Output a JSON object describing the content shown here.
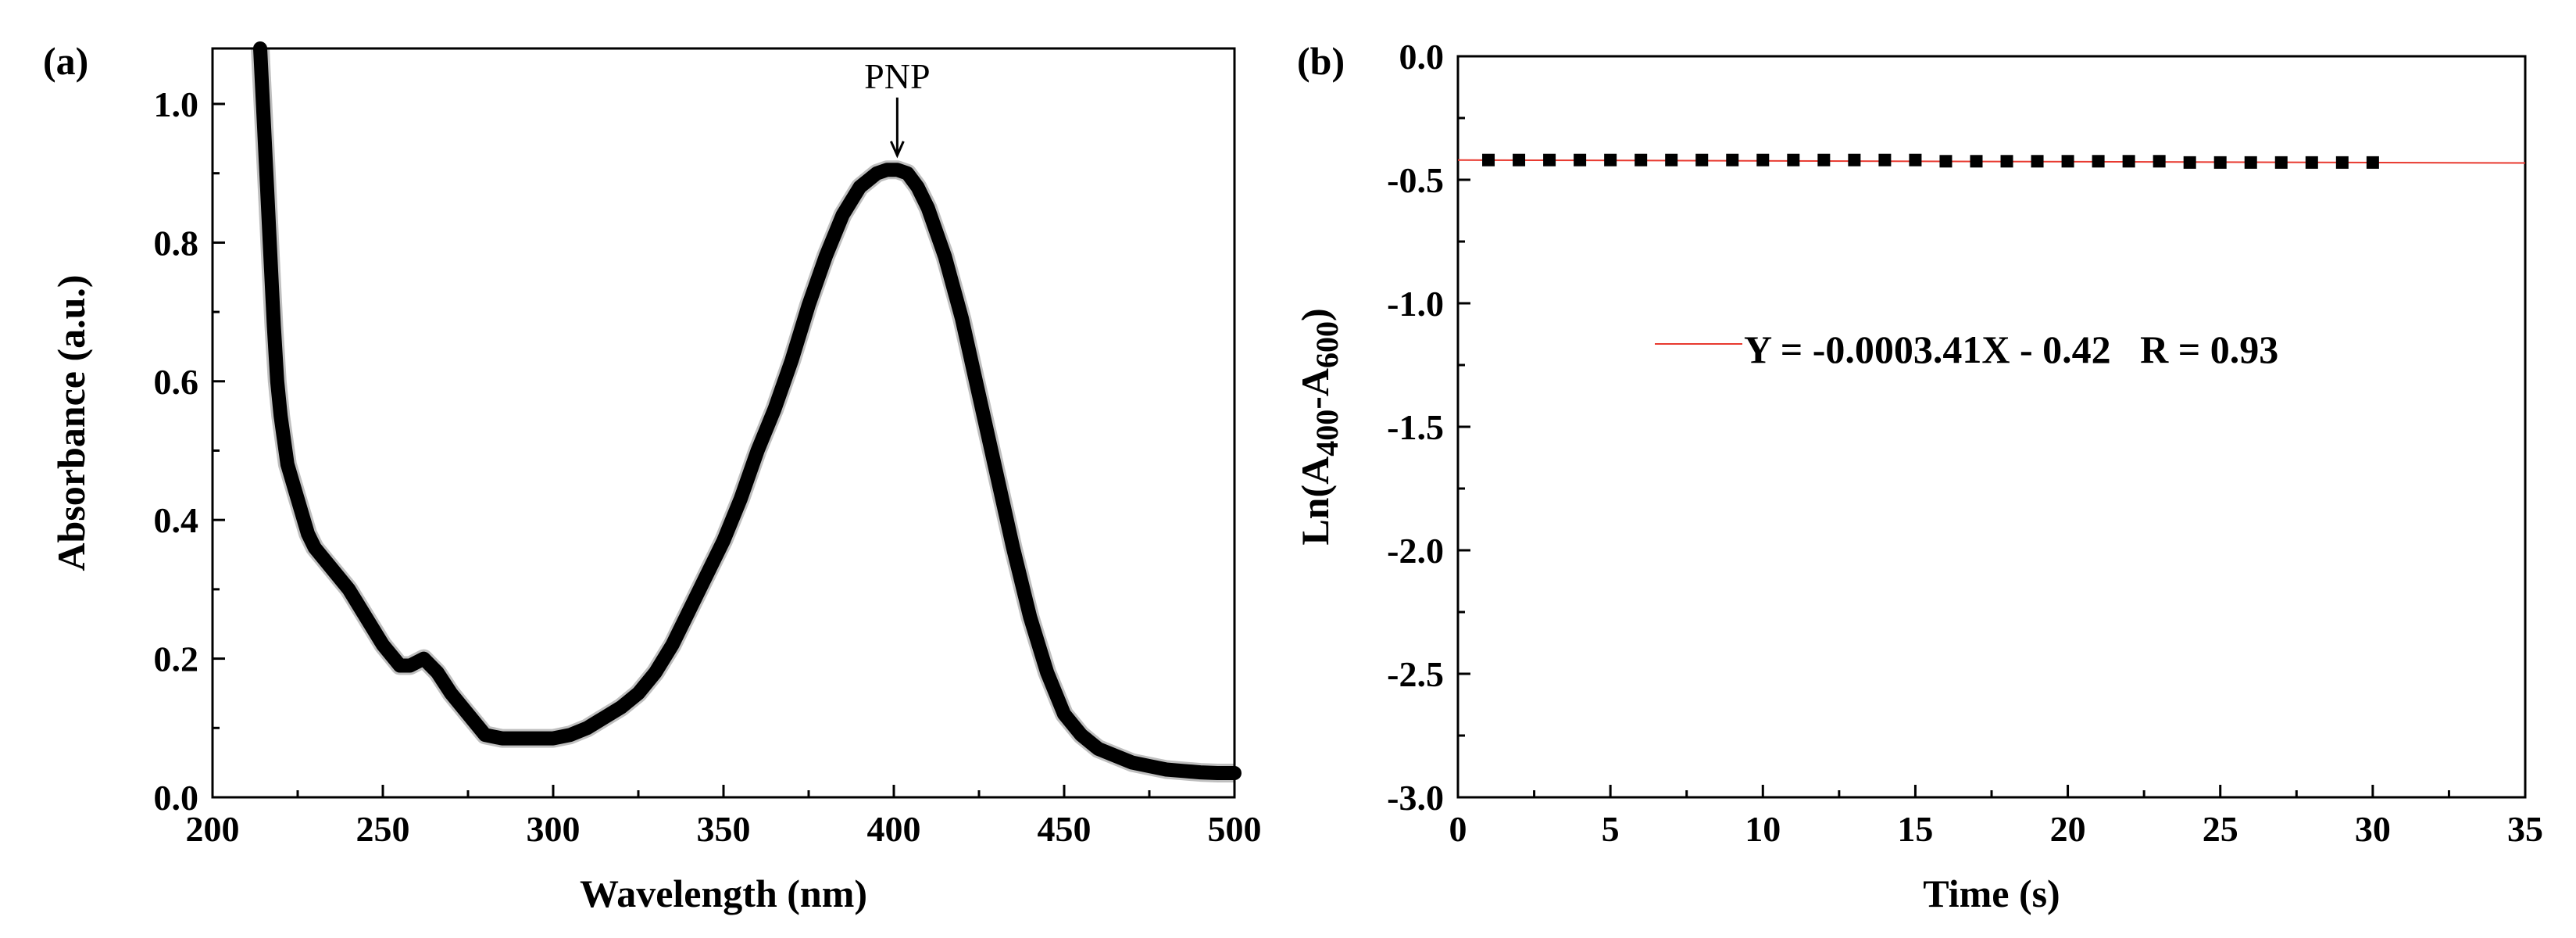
{
  "chart_data": [
    {
      "panel_label": "(a)",
      "type": "line",
      "xlabel": "Wavelength (nm)",
      "ylabel": "Absorbance (a.u.)",
      "xlim": [
        200,
        500
      ],
      "ylim": [
        0,
        1.08
      ],
      "x_ticks": [
        200,
        250,
        300,
        350,
        400,
        450,
        500
      ],
      "x_tick_labels": [
        "200",
        "250",
        "300",
        "350",
        "400",
        "450",
        "500"
      ],
      "y_ticks": [
        0.0,
        0.2,
        0.4,
        0.6,
        0.8,
        1.0
      ],
      "y_tick_labels": [
        "0.0",
        "0.2",
        "0.4",
        "0.6",
        "0.8",
        "1.0"
      ],
      "grid": false,
      "annotation": {
        "text": "PNP",
        "x": 401,
        "y": 0.91
      },
      "series": [
        {
          "color": "#000000",
          "x": [
            214,
            215,
            216,
            217,
            218,
            219,
            220,
            222,
            225,
            228,
            230,
            235,
            240,
            245,
            250,
            255,
            258,
            262,
            266,
            270,
            275,
            280,
            285,
            290,
            295,
            300,
            305,
            310,
            315,
            320,
            325,
            330,
            335,
            340,
            345,
            350,
            355,
            360,
            365,
            370,
            375,
            380,
            385,
            390,
            395,
            398,
            401,
            404,
            407,
            410,
            415,
            420,
            425,
            430,
            435,
            440,
            445,
            450,
            455,
            460,
            465,
            470,
            475,
            480,
            485,
            490,
            495,
            500
          ],
          "y": [
            1.08,
            0.98,
            0.88,
            0.78,
            0.68,
            0.6,
            0.55,
            0.48,
            0.43,
            0.38,
            0.36,
            0.33,
            0.3,
            0.26,
            0.22,
            0.19,
            0.19,
            0.2,
            0.18,
            0.15,
            0.12,
            0.09,
            0.085,
            0.085,
            0.085,
            0.085,
            0.09,
            0.1,
            0.115,
            0.13,
            0.15,
            0.18,
            0.22,
            0.27,
            0.32,
            0.37,
            0.43,
            0.5,
            0.56,
            0.63,
            0.71,
            0.78,
            0.84,
            0.88,
            0.9,
            0.905,
            0.905,
            0.9,
            0.88,
            0.85,
            0.78,
            0.69,
            0.58,
            0.47,
            0.36,
            0.26,
            0.18,
            0.12,
            0.09,
            0.07,
            0.06,
            0.05,
            0.045,
            0.04,
            0.038,
            0.036,
            0.035,
            0.035
          ]
        }
      ]
    },
    {
      "panel_label": "(b)",
      "type": "scatter",
      "xlabel": "Time (s)",
      "ylabel_parts": [
        "Ln(A",
        "400",
        "-A",
        "600",
        ")"
      ],
      "xlim": [
        0,
        35
      ],
      "ylim": [
        -3.0,
        0.0
      ],
      "x_ticks": [
        0,
        5,
        10,
        15,
        20,
        25,
        30,
        35
      ],
      "x_tick_labels": [
        "0",
        "5",
        "10",
        "15",
        "20",
        "25",
        "30",
        "35"
      ],
      "y_ticks": [
        0.0,
        -0.5,
        -1.0,
        -1.5,
        -2.0,
        -2.5,
        -3.0
      ],
      "y_tick_labels": [
        "0.0",
        "-0.5",
        "-1.0",
        "-1.5",
        "-2.0",
        "-2.5",
        "-3.0"
      ],
      "grid": false,
      "fit": {
        "slope": -0.000341,
        "intercept": -0.42,
        "color": "#e8392f"
      },
      "legend": {
        "text": "Y = -0.0003.41X - 0.42   R = 0.93",
        "placement": "center"
      },
      "series": [
        {
          "color": "#000000",
          "marker": "square",
          "x": [
            1,
            2,
            3,
            4,
            5,
            6,
            7,
            8,
            9,
            10,
            11,
            12,
            13,
            14,
            15,
            16,
            17,
            18,
            19,
            20,
            21,
            22,
            23,
            24,
            25,
            26,
            27,
            28,
            29,
            30
          ],
          "y": [
            -0.42,
            -0.42,
            -0.42,
            -0.42,
            -0.42,
            -0.42,
            -0.42,
            -0.42,
            -0.42,
            -0.42,
            -0.42,
            -0.42,
            -0.42,
            -0.42,
            -0.42,
            -0.425,
            -0.425,
            -0.425,
            -0.425,
            -0.425,
            -0.425,
            -0.425,
            -0.425,
            -0.43,
            -0.43,
            -0.43,
            -0.43,
            -0.43,
            -0.43,
            -0.43
          ]
        }
      ]
    }
  ]
}
